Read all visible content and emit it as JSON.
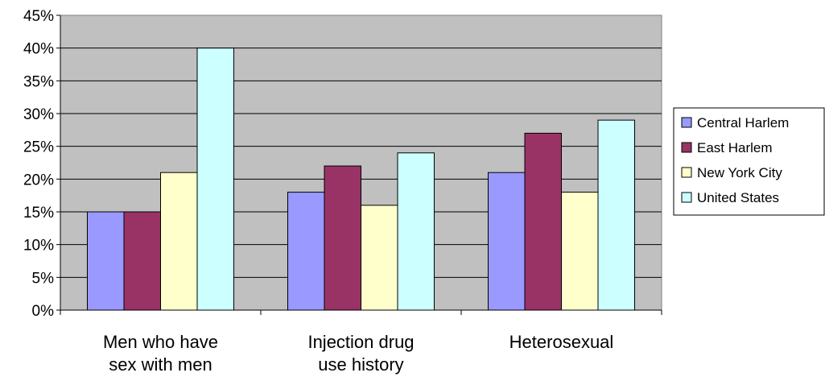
{
  "chart_data": {
    "type": "bar",
    "categories": [
      [
        "Men who have",
        "sex with men"
      ],
      [
        "Injection drug",
        "use history"
      ],
      [
        "Heterosexual"
      ]
    ],
    "series": [
      {
        "name": "Central Harlem",
        "color": "#9999ff",
        "values": [
          15,
          18,
          21
        ]
      },
      {
        "name": "East Harlem",
        "color": "#993366",
        "values": [
          15,
          22,
          27
        ]
      },
      {
        "name": "New York City",
        "color": "#ffffcc",
        "values": [
          21,
          16,
          18
        ]
      },
      {
        "name": "United States",
        "color": "#ccffff",
        "values": [
          40,
          24,
          29
        ]
      }
    ],
    "y_ticks": [
      "0%",
      "5%",
      "10%",
      "15%",
      "20%",
      "25%",
      "30%",
      "35%",
      "40%",
      "45%"
    ],
    "ylim": [
      0,
      45
    ],
    "grid": true,
    "plot_background": "#c0c0c0",
    "legend_position": "right"
  }
}
